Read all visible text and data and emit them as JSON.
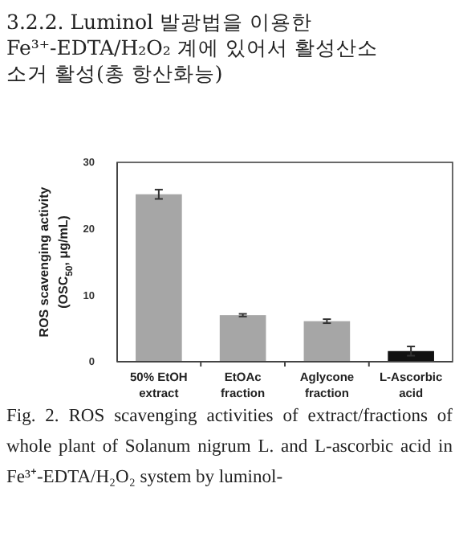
{
  "chart_data": {
    "type": "bar",
    "title": "3.2.2. Luminol 발광법을 이용한\nFe³⁺-EDTA/H₂O₂ 계에 있어서 활성산소\n소거 활성(총 항산화능)",
    "ylabel": "ROS scavenging activity\n(OSC$_{50}$, μg/mL)",
    "categories": [
      "50% EtOH\nextract",
      "EtOAc\nfraction",
      "Aglycone\nfraction",
      "L-Ascorbic\nacid"
    ],
    "values": [
      25.2,
      7.0,
      6.1,
      1.6
    ],
    "errors": [
      0.7,
      0.2,
      0.3,
      0.7
    ],
    "colors": [
      "#a6a6a6",
      "#a6a6a6",
      "#a6a6a6",
      "#111111"
    ],
    "ylim": [
      0,
      30
    ],
    "yticks": [
      0,
      10,
      20,
      30
    ],
    "grid": false,
    "annotations": [
      "Fig. 2. ROS scavenging activities of extract/fractions of whole plant of Solanum nigrum L. and L-ascorbic acid in Fe³⁺-EDTA/H₂O₂ system by luminol-"
    ]
  }
}
